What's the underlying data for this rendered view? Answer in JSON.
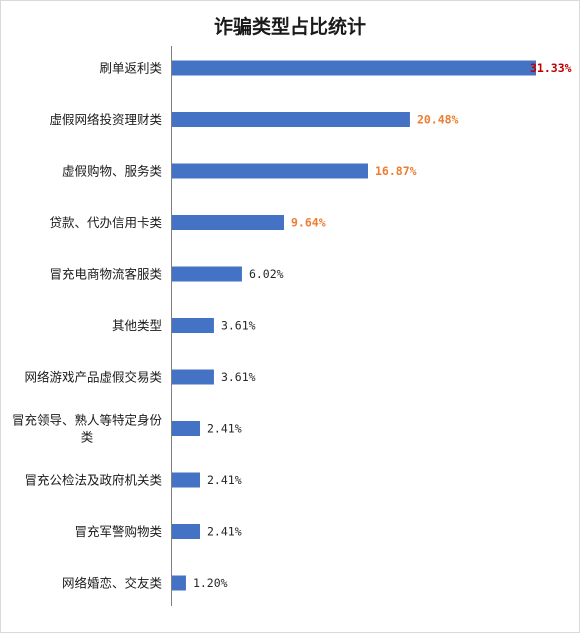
{
  "chart_data": {
    "type": "bar",
    "orientation": "horizontal",
    "title": "诈骗类型占比统计",
    "categories": [
      "刷单返利类",
      "虚假网络投资理财类",
      "虚假购物、服务类",
      "贷款、代办信用卡类",
      "冒充电商物流客服类",
      "其他类型",
      "网络游戏产品虚假交易类",
      "冒充领导、熟人等特定身份类",
      "冒充公检法及政府机关类",
      "冒充军警购物类",
      "网络婚恋、交友类"
    ],
    "values": [
      31.33,
      20.48,
      16.87,
      9.64,
      6.02,
      3.61,
      3.61,
      2.41,
      2.41,
      2.41,
      1.2
    ],
    "value_labels": [
      "31.33%",
      "20.48%",
      "16.87%",
      "9.64%",
      "6.02%",
      "3.61%",
      "3.61%",
      "2.41%",
      "2.41%",
      "2.41%",
      "1.20%"
    ],
    "label_colors": [
      "#c00000",
      "#ed7d31",
      "#ed7d31",
      "#ed7d31",
      "#262626",
      "#262626",
      "#262626",
      "#262626",
      "#262626",
      "#262626",
      "#262626"
    ],
    "bar_color": "#4472c4",
    "xlim": [
      0,
      31.33
    ],
    "grid": false,
    "legend": "none"
  }
}
